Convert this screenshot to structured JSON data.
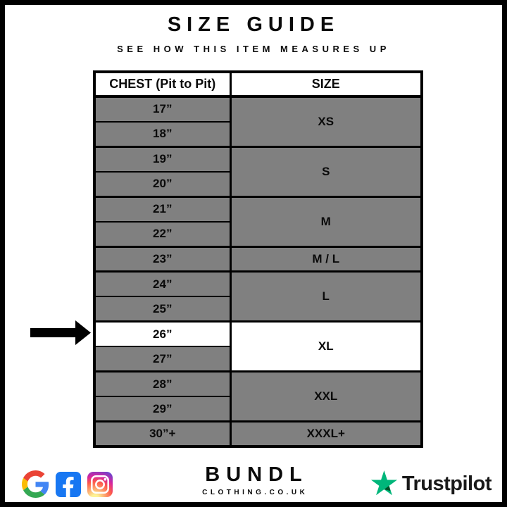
{
  "header": {
    "title": "SIZE GUIDE",
    "subtitle": "SEE HOW THIS ITEM MEASURES UP"
  },
  "chart_data": {
    "type": "table",
    "title": "SIZE GUIDE",
    "subtitle": "SEE HOW THIS ITEM MEASURES UP",
    "columns": [
      "CHEST (Pit to Pit)",
      "SIZE"
    ],
    "rows": [
      [
        "17”",
        "XS"
      ],
      [
        "18”",
        "XS"
      ],
      [
        "19”",
        "S"
      ],
      [
        "20”",
        "S"
      ],
      [
        "21”",
        "M"
      ],
      [
        "22”",
        "M"
      ],
      [
        "23”",
        "M / L"
      ],
      [
        "24”",
        "L"
      ],
      [
        "25”",
        "L"
      ],
      [
        "26”",
        "XL"
      ],
      [
        "27”",
        "XL"
      ],
      [
        "28”",
        "XXL"
      ],
      [
        "29”",
        "XXL"
      ],
      [
        "30”+",
        "XXXL+"
      ]
    ],
    "highlighted_row": "26”",
    "highlighted_size": "XL"
  },
  "size_table": {
    "chest_header": "CHEST (Pit to Pit)",
    "size_header": "SIZE",
    "groups": [
      {
        "size": "XS",
        "rows": [
          {
            "chest": "17”"
          },
          {
            "chest": "18”"
          }
        ]
      },
      {
        "size": "S",
        "rows": [
          {
            "chest": "19”"
          },
          {
            "chest": "20”"
          }
        ]
      },
      {
        "size": "M",
        "rows": [
          {
            "chest": "21”"
          },
          {
            "chest": "22”"
          }
        ]
      },
      {
        "size": "M / L",
        "rows": [
          {
            "chest": "23”"
          }
        ]
      },
      {
        "size": "L",
        "rows": [
          {
            "chest": "24”"
          },
          {
            "chest": "25”"
          }
        ]
      },
      {
        "size": "XL",
        "size_highlight": true,
        "rows": [
          {
            "chest": "26”",
            "highlight": true
          },
          {
            "chest": "27”"
          }
        ]
      },
      {
        "size": "XXL",
        "rows": [
          {
            "chest": "28”"
          },
          {
            "chest": "29”"
          }
        ]
      },
      {
        "size": "XXXL+",
        "rows": [
          {
            "chest": "30”+"
          }
        ]
      }
    ]
  },
  "arrow": {
    "indicates_chest": "26”"
  },
  "footer": {
    "icons": [
      "google-icon",
      "facebook-icon",
      "instagram-icon"
    ],
    "brand_name": "BUNDL",
    "brand_tagline": "CLOTHING.CO.UK",
    "trustpilot_label": "Trustpilot"
  },
  "colors": {
    "row_gray": "#808080",
    "highlight_white": "#ffffff",
    "border_black": "#000000",
    "trustpilot_green": "#00B67A",
    "trustpilot_shadow_green": "#005128",
    "facebook_blue": "#1877F2"
  }
}
